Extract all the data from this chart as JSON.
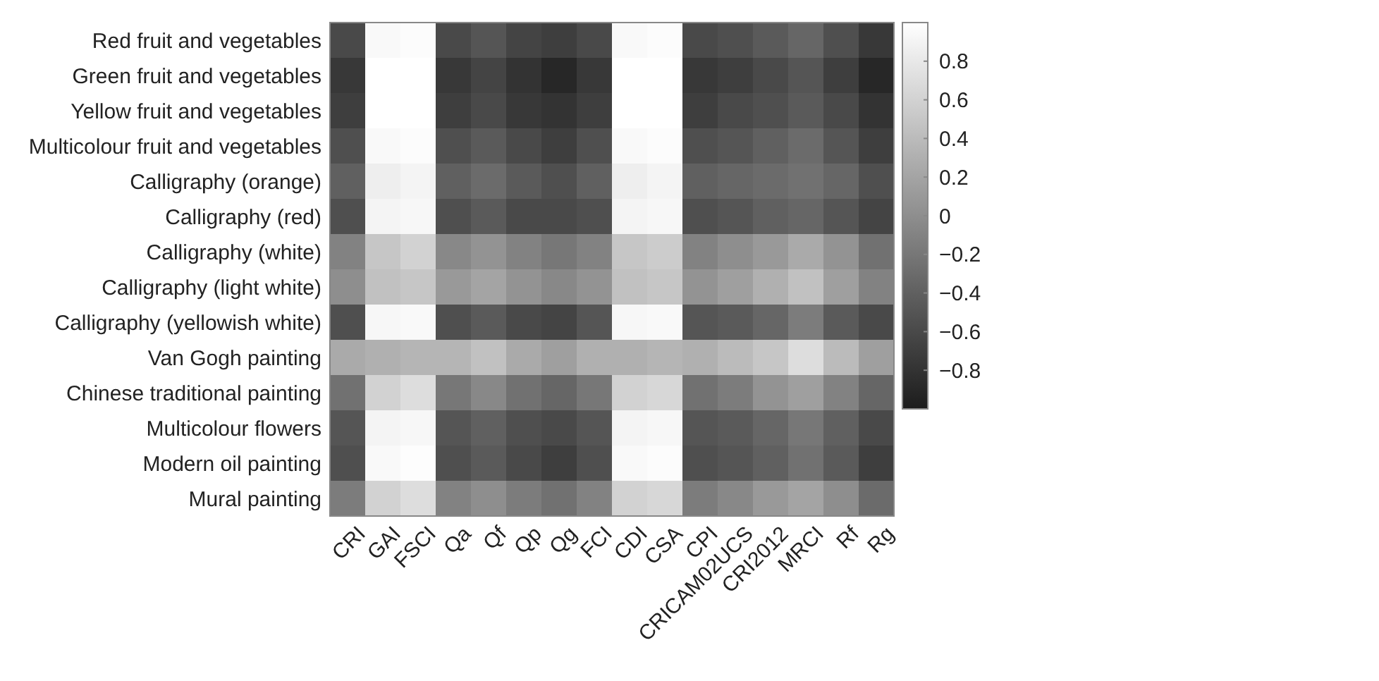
{
  "chart_data": {
    "type": "heatmap",
    "categories": [
      "CRI",
      "GAI",
      "FSCI",
      "Qa",
      "Qf",
      "Qp",
      "Qg",
      "FCI",
      "CDI",
      "CSA",
      "CPI",
      "CRICAM02UCS",
      "CRI2012",
      "MRCI",
      "Rf",
      "Rg"
    ],
    "y_categories": [
      "Red fruit and vegetables",
      "Green fruit and vegetables",
      "Yellow fruit and vegetables",
      "Multicolour fruit and vegetables",
      "Calligraphy (orange)",
      "Calligraphy (red)",
      "Calligraphy (white)",
      "Calligraphy (light white)",
      "Calligraphy (yellowish white)",
      "Van Gogh painting",
      "Chinese traditional painting",
      "Multicolour flowers",
      "Modern oil painting",
      "Mural painting"
    ],
    "cells": [
      [
        -0.6,
        0.95,
        0.97,
        -0.6,
        -0.5,
        -0.65,
        -0.7,
        -0.6,
        0.95,
        0.97,
        -0.6,
        -0.55,
        -0.45,
        -0.35,
        -0.55,
        -0.75
      ],
      [
        -0.75,
        1,
        1,
        -0.75,
        -0.65,
        -0.8,
        -0.9,
        -0.75,
        1,
        1,
        -0.75,
        -0.7,
        -0.6,
        -0.5,
        -0.7,
        -0.9
      ],
      [
        -0.7,
        1,
        1,
        -0.7,
        -0.6,
        -0.75,
        -0.8,
        -0.7,
        1,
        1,
        -0.7,
        -0.6,
        -0.55,
        -0.45,
        -0.6,
        -0.8
      ],
      [
        -0.55,
        0.95,
        0.97,
        -0.55,
        -0.45,
        -0.6,
        -0.7,
        -0.55,
        0.95,
        0.97,
        -0.55,
        -0.5,
        -0.4,
        -0.3,
        -0.5,
        -0.7
      ],
      [
        -0.4,
        0.85,
        0.9,
        -0.4,
        -0.3,
        -0.45,
        -0.55,
        -0.4,
        0.85,
        0.9,
        -0.4,
        -0.35,
        -0.3,
        -0.25,
        -0.35,
        -0.55
      ],
      [
        -0.55,
        0.9,
        0.93,
        -0.55,
        -0.45,
        -0.6,
        -0.6,
        -0.55,
        0.9,
        0.93,
        -0.55,
        -0.5,
        -0.4,
        -0.35,
        -0.5,
        -0.65
      ],
      [
        -0.1,
        0.5,
        0.6,
        -0.05,
        0.05,
        -0.1,
        -0.2,
        -0.1,
        0.5,
        0.55,
        -0.1,
        0,
        0.1,
        0.25,
        0.05,
        -0.25
      ],
      [
        0,
        0.45,
        0.5,
        0.1,
        0.2,
        0.05,
        -0.05,
        0.05,
        0.45,
        0.5,
        0.05,
        0.15,
        0.3,
        0.45,
        0.15,
        -0.1
      ],
      [
        -0.55,
        0.93,
        0.95,
        -0.55,
        -0.45,
        -0.6,
        -0.65,
        -0.5,
        0.93,
        0.95,
        -0.5,
        -0.45,
        -0.35,
        -0.15,
        -0.45,
        -0.6
      ],
      [
        0.25,
        0.3,
        0.35,
        0.35,
        0.45,
        0.25,
        0.15,
        0.3,
        0.3,
        0.35,
        0.3,
        0.4,
        0.5,
        0.7,
        0.4,
        0.15
      ],
      [
        -0.25,
        0.6,
        0.7,
        -0.2,
        -0.05,
        -0.25,
        -0.35,
        -0.2,
        0.6,
        0.65,
        -0.25,
        -0.15,
        0.05,
        0.15,
        -0.1,
        -0.35
      ],
      [
        -0.5,
        0.9,
        0.93,
        -0.5,
        -0.4,
        -0.55,
        -0.6,
        -0.5,
        0.9,
        0.93,
        -0.5,
        -0.45,
        -0.35,
        -0.2,
        -0.4,
        -0.6
      ],
      [
        -0.55,
        0.95,
        0.98,
        -0.55,
        -0.45,
        -0.6,
        -0.7,
        -0.55,
        0.95,
        0.97,
        -0.55,
        -0.5,
        -0.4,
        -0.25,
        -0.45,
        -0.7
      ],
      [
        -0.15,
        0.6,
        0.7,
        -0.1,
        0,
        -0.15,
        -0.25,
        -0.1,
        0.6,
        0.65,
        -0.15,
        -0.05,
        0.1,
        0.2,
        0,
        -0.3
      ]
    ],
    "clim": [
      -1,
      1
    ],
    "cticks": [
      {
        "value": -0.8,
        "label": "−0.8"
      },
      {
        "value": -0.6,
        "label": "−0.6"
      },
      {
        "value": -0.4,
        "label": "−0.4"
      },
      {
        "value": -0.2,
        "label": "−0.2"
      },
      0,
      0.2,
      0.4,
      0.6,
      0.8
    ]
  }
}
